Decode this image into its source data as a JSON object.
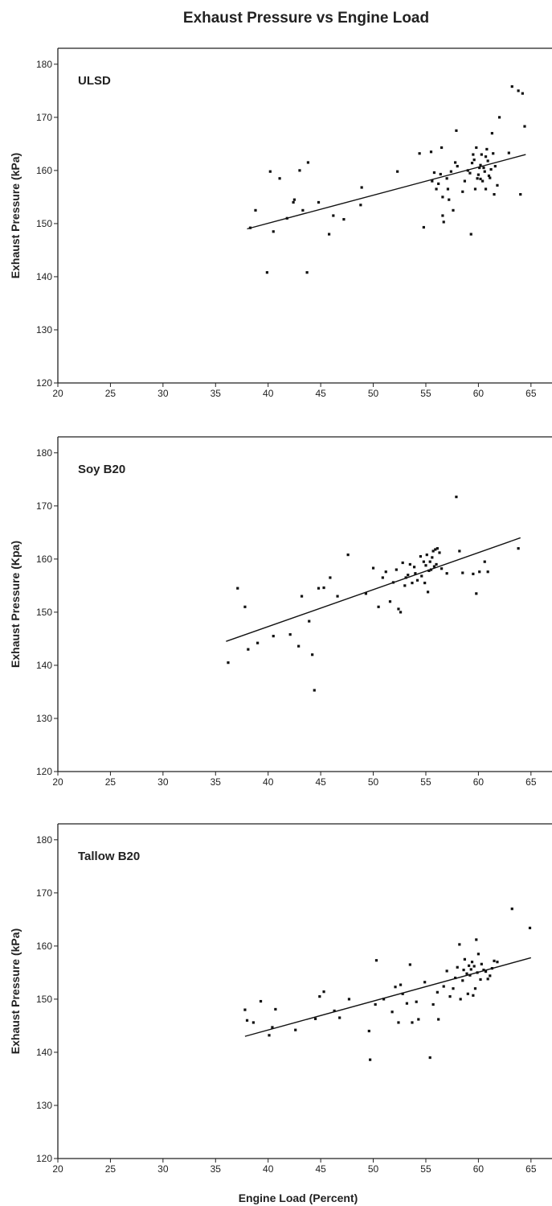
{
  "title": "Exhaust Pressure vs Engine Load",
  "xlabel": "Engine Load (Percent)",
  "chart_data": [
    {
      "type": "scatter",
      "panel_label": "ULSD",
      "ylabel": "Exhaust Pressure (kPa)",
      "xlim": [
        20,
        67
      ],
      "ylim": [
        120,
        183
      ],
      "xticks": [
        20,
        25,
        30,
        35,
        40,
        45,
        50,
        55,
        60,
        65
      ],
      "yticks": [
        120,
        130,
        140,
        150,
        160,
        170,
        180
      ],
      "trendline": [
        [
          38,
          149
        ],
        [
          64.5,
          163
        ]
      ],
      "points": [
        [
          38.3,
          149.2
        ],
        [
          38.8,
          152.5
        ],
        [
          39.9,
          140.8
        ],
        [
          40.2,
          159.8
        ],
        [
          40.5,
          148.5
        ],
        [
          41.1,
          158.5
        ],
        [
          41.8,
          151
        ],
        [
          42.4,
          154
        ],
        [
          42.5,
          154.5
        ],
        [
          43,
          160
        ],
        [
          43.3,
          152.5
        ],
        [
          43.8,
          161.5
        ],
        [
          43.7,
          140.8
        ],
        [
          44.8,
          154
        ],
        [
          45.8,
          148
        ],
        [
          46.2,
          151.5
        ],
        [
          47.2,
          150.8
        ],
        [
          48.8,
          153.5
        ],
        [
          48.9,
          156.8
        ],
        [
          52.3,
          159.8
        ],
        [
          54.4,
          163.2
        ],
        [
          54.8,
          149.3
        ],
        [
          55.5,
          163.5
        ],
        [
          55.6,
          158
        ],
        [
          55.8,
          159.6
        ],
        [
          56,
          156.5
        ],
        [
          56.2,
          157.5
        ],
        [
          56.4,
          159.3
        ],
        [
          56.5,
          164.3
        ],
        [
          56.6,
          155
        ],
        [
          56.6,
          151.5
        ],
        [
          56.7,
          150.3
        ],
        [
          57,
          158.5
        ],
        [
          57.1,
          156.5
        ],
        [
          57.2,
          154.5
        ],
        [
          57.6,
          152.5
        ],
        [
          57.8,
          161.5
        ],
        [
          57.9,
          167.5
        ],
        [
          58,
          160.8
        ],
        [
          58.5,
          156
        ],
        [
          58.7,
          158
        ],
        [
          59,
          160
        ],
        [
          59.2,
          159.5
        ],
        [
          59.3,
          148
        ],
        [
          59.5,
          163
        ],
        [
          59.6,
          162
        ],
        [
          59.7,
          156.5
        ],
        [
          59.8,
          164.3
        ],
        [
          59.9,
          158.5
        ],
        [
          60,
          159.2
        ],
        [
          60.1,
          160.5
        ],
        [
          60.2,
          161
        ],
        [
          60.3,
          163
        ],
        [
          60.4,
          158
        ],
        [
          60.5,
          160.5
        ],
        [
          60.6,
          159.8
        ],
        [
          60.7,
          156.5
        ],
        [
          60.8,
          164
        ],
        [
          60.9,
          161.8
        ],
        [
          61,
          159
        ],
        [
          61.1,
          158.6
        ],
        [
          61.2,
          160.2
        ],
        [
          61.3,
          167
        ],
        [
          61.4,
          163.2
        ],
        [
          61.5,
          155.5
        ],
        [
          61.6,
          160.8
        ],
        [
          61.8,
          157.2
        ],
        [
          62,
          170
        ],
        [
          62.9,
          163.3
        ],
        [
          63.2,
          175.8
        ],
        [
          63.8,
          175
        ],
        [
          64,
          155.5
        ],
        [
          64.2,
          174.5
        ],
        [
          64.4,
          168.3
        ],
        [
          60.2,
          158.4
        ],
        [
          60.7,
          162.6
        ],
        [
          59.4,
          161.4
        ],
        [
          57.4,
          159.8
        ]
      ]
    },
    {
      "type": "scatter",
      "panel_label": "Soy B20",
      "ylabel": "Exhaust Pressure (Kpa)",
      "xlim": [
        20,
        67
      ],
      "ylim": [
        120,
        183
      ],
      "xticks": [
        20,
        25,
        30,
        35,
        40,
        45,
        50,
        55,
        60,
        65
      ],
      "yticks": [
        120,
        130,
        140,
        150,
        160,
        170,
        180
      ],
      "trendline": [
        [
          36,
          144.5
        ],
        [
          64,
          164
        ]
      ],
      "points": [
        [
          36.2,
          140.5
        ],
        [
          37.1,
          154.5
        ],
        [
          37.8,
          151
        ],
        [
          38.1,
          143
        ],
        [
          39,
          144.2
        ],
        [
          40.5,
          145.5
        ],
        [
          42.1,
          145.8
        ],
        [
          42.9,
          143.6
        ],
        [
          43.2,
          153
        ],
        [
          43.9,
          148.3
        ],
        [
          44.2,
          142
        ],
        [
          44.4,
          135.3
        ],
        [
          44.8,
          154.5
        ],
        [
          45.3,
          154.6
        ],
        [
          45.9,
          156.5
        ],
        [
          46.6,
          153
        ],
        [
          47.6,
          160.8
        ],
        [
          49.3,
          153.5
        ],
        [
          50,
          158.3
        ],
        [
          50.5,
          151
        ],
        [
          50.9,
          156.5
        ],
        [
          51.2,
          157.6
        ],
        [
          51.6,
          152
        ],
        [
          51.9,
          155.6
        ],
        [
          52.2,
          158
        ],
        [
          52.4,
          150.6
        ],
        [
          52.6,
          150
        ],
        [
          52.8,
          159.3
        ],
        [
          53,
          155
        ],
        [
          53.1,
          156.5
        ],
        [
          53.3,
          157
        ],
        [
          53.5,
          159
        ],
        [
          53.7,
          155.5
        ],
        [
          53.9,
          158.5
        ],
        [
          54,
          157.3
        ],
        [
          54.2,
          156
        ],
        [
          54.5,
          160.5
        ],
        [
          54.6,
          156.8
        ],
        [
          54.8,
          159.5
        ],
        [
          54.9,
          155.5
        ],
        [
          55,
          158.8
        ],
        [
          55.1,
          160.8
        ],
        [
          55.2,
          153.8
        ],
        [
          55.3,
          157.8
        ],
        [
          55.4,
          159.5
        ],
        [
          55.5,
          158
        ],
        [
          55.6,
          160.3
        ],
        [
          55.7,
          161.5
        ],
        [
          55.8,
          158.6
        ],
        [
          55.9,
          161.8
        ],
        [
          56,
          159
        ],
        [
          56.1,
          162
        ],
        [
          56.3,
          161.2
        ],
        [
          56.5,
          158.2
        ],
        [
          57,
          157.3
        ],
        [
          57.9,
          171.7
        ],
        [
          58.2,
          161.5
        ],
        [
          58.5,
          157.4
        ],
        [
          59.5,
          157.2
        ],
        [
          59.8,
          153.5
        ],
        [
          60.1,
          157.6
        ],
        [
          60.6,
          159.5
        ],
        [
          60.9,
          157.6
        ],
        [
          63.8,
          162
        ]
      ]
    },
    {
      "type": "scatter",
      "panel_label": "Tallow B20",
      "ylabel": "Exhaust Pressure (kPa)",
      "xlim": [
        20,
        67
      ],
      "ylim": [
        120,
        183
      ],
      "xticks": [
        20,
        25,
        30,
        35,
        40,
        45,
        50,
        55,
        60,
        65
      ],
      "yticks": [
        120,
        130,
        140,
        150,
        160,
        170,
        180
      ],
      "trendline": [
        [
          37.8,
          143
        ],
        [
          65,
          157.8
        ]
      ],
      "points": [
        [
          37.8,
          148
        ],
        [
          38,
          146
        ],
        [
          38.6,
          145.6
        ],
        [
          39.3,
          149.6
        ],
        [
          40.1,
          143.2
        ],
        [
          40.4,
          144.7
        ],
        [
          40.7,
          148.1
        ],
        [
          42.6,
          144.2
        ],
        [
          44.5,
          146.3
        ],
        [
          44.9,
          150.5
        ],
        [
          45.3,
          151.4
        ],
        [
          46.3,
          147.8
        ],
        [
          46.8,
          146.5
        ],
        [
          47.7,
          150
        ],
        [
          49.6,
          144
        ],
        [
          49.7,
          138.6
        ],
        [
          50.2,
          149
        ],
        [
          50.3,
          157.3
        ],
        [
          51,
          150
        ],
        [
          51.8,
          147.6
        ],
        [
          52.1,
          152.3
        ],
        [
          52.4,
          145.6
        ],
        [
          52.6,
          152.7
        ],
        [
          52.8,
          151
        ],
        [
          53.2,
          149.2
        ],
        [
          53.5,
          156.5
        ],
        [
          53.7,
          145.6
        ],
        [
          54.1,
          149.5
        ],
        [
          54.3,
          146.2
        ],
        [
          54.9,
          153.2
        ],
        [
          55.4,
          139
        ],
        [
          55.7,
          149
        ],
        [
          56.1,
          151.3
        ],
        [
          56.2,
          146.2
        ],
        [
          56.7,
          152.4
        ],
        [
          57,
          155.3
        ],
        [
          57.3,
          150.5
        ],
        [
          57.6,
          152
        ],
        [
          57.8,
          154
        ],
        [
          58,
          156
        ],
        [
          58.2,
          160.3
        ],
        [
          58.3,
          150
        ],
        [
          58.5,
          153.5
        ],
        [
          58.6,
          155.5
        ],
        [
          58.7,
          157.5
        ],
        [
          58.9,
          154.8
        ],
        [
          59,
          151
        ],
        [
          59.1,
          156.3
        ],
        [
          59.2,
          154.5
        ],
        [
          59.3,
          155.6
        ],
        [
          59.4,
          157
        ],
        [
          59.5,
          150.7
        ],
        [
          59.6,
          156.2
        ],
        [
          59.7,
          152
        ],
        [
          59.8,
          161.2
        ],
        [
          59.9,
          155
        ],
        [
          60,
          158.5
        ],
        [
          60.2,
          153.7
        ],
        [
          60.3,
          156.6
        ],
        [
          60.5,
          155.5
        ],
        [
          60.7,
          155.2
        ],
        [
          60.9,
          153.8
        ],
        [
          61.1,
          154.4
        ],
        [
          61.3,
          155.8
        ],
        [
          61.5,
          157.2
        ],
        [
          61.8,
          157
        ],
        [
          63.2,
          167
        ],
        [
          64.9,
          163.4
        ]
      ]
    }
  ]
}
